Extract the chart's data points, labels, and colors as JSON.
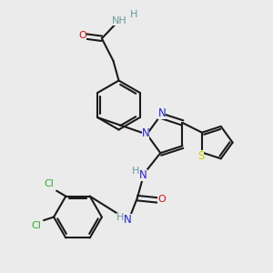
{
  "bg": "#ebebeb",
  "bc": "#1a1a1a",
  "N_color": "#2222cc",
  "O_color": "#cc1111",
  "S_color": "#cccc00",
  "Cl_color": "#33aa33",
  "H_color": "#6a9a9a",
  "lw": 1.5,
  "fs": 7.5,
  "figsize": [
    3.0,
    3.0
  ],
  "dpi": 100,
  "xlim": [
    0,
    10
  ],
  "ylim": [
    0,
    10
  ]
}
